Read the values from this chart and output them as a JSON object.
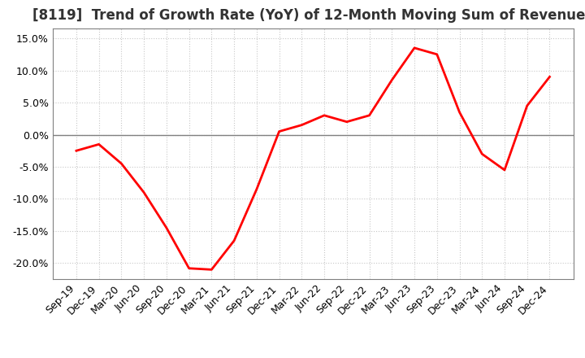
{
  "title": "[8119]  Trend of Growth Rate (YoY) of 12-Month Moving Sum of Revenues",
  "x_labels": [
    "Sep-19",
    "Dec-19",
    "Mar-20",
    "Jun-20",
    "Sep-20",
    "Dec-20",
    "Mar-21",
    "Jun-21",
    "Sep-21",
    "Dec-21",
    "Mar-22",
    "Jun-22",
    "Sep-22",
    "Dec-22",
    "Mar-23",
    "Jun-23",
    "Sep-23",
    "Dec-23",
    "Mar-24",
    "Jun-24",
    "Sep-24",
    "Dec-24"
  ],
  "y_values": [
    -2.5,
    -1.5,
    -4.5,
    -9.0,
    -14.5,
    -20.8,
    -21.0,
    -16.5,
    -8.5,
    0.5,
    1.5,
    3.0,
    2.0,
    3.0,
    8.5,
    13.5,
    12.5,
    3.5,
    -3.0,
    -5.5,
    4.5,
    9.0
  ],
  "ylim": [
    -22.5,
    16.5
  ],
  "yticks": [
    -20.0,
    -15.0,
    -10.0,
    -5.0,
    0.0,
    5.0,
    10.0,
    15.0
  ],
  "line_color": "#ff0000",
  "background_color": "#ffffff",
  "grid_color": "#c8c8c8",
  "zero_line_color": "#808080",
  "border_color": "#808080",
  "title_fontsize": 12,
  "tick_fontsize": 9
}
